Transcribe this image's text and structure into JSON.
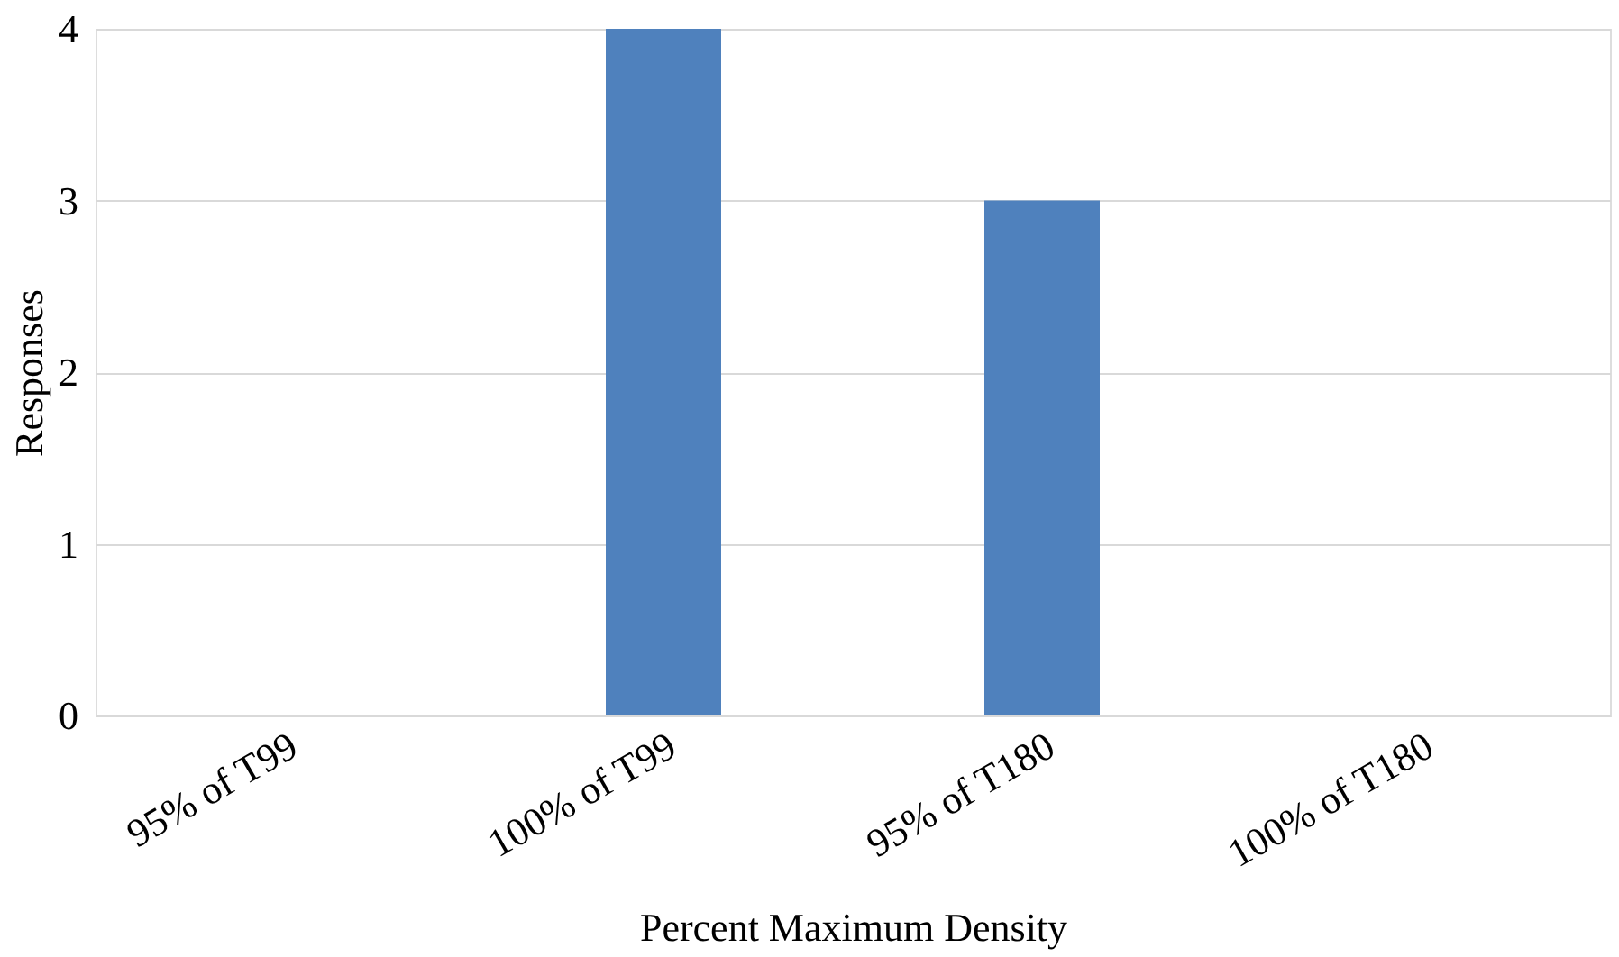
{
  "chart_data": {
    "type": "bar",
    "xlabel": "Percent Maximum Density",
    "ylabel": "Responses",
    "categories": [
      "95% of T99",
      "100% of T99",
      "95% of T180",
      "100% of T180"
    ],
    "values": [
      0,
      4,
      3,
      0
    ],
    "color": "#4f81bd",
    "ylim": [
      0,
      4
    ],
    "yticks": [
      0,
      1,
      2,
      3,
      4
    ],
    "grid": "y"
  }
}
